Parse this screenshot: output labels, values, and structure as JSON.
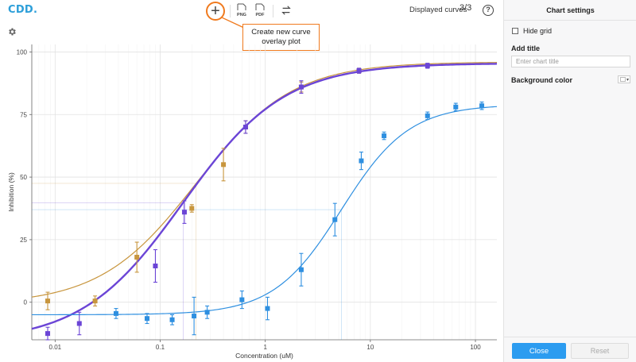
{
  "app": {
    "logo": "CDD."
  },
  "toolbar": {
    "add_curve_icon": "plus-icon",
    "png_label": "PNG",
    "pdf_label": "PDF",
    "swap_icon": "swap-arrows-icon",
    "displayed_curves_label": "Displayed curves",
    "displayed_curves_count": "3/3",
    "help_label": "?"
  },
  "callout": {
    "line1": "Create new curve",
    "line2": "overlay plot"
  },
  "panel": {
    "title": "Chart settings",
    "hide_grid_label": "Hide grid",
    "hide_grid_checked": false,
    "add_title_label": "Add title",
    "title_placeholder": "Enter chart title",
    "title_value": "",
    "background_color_label": "Background color",
    "background_color": "#ffffff",
    "close_label": "Close",
    "reset_label": "Reset"
  },
  "colors": {
    "accent": "#2c9cf0",
    "callout": "#f07a1e"
  },
  "chart_data": {
    "type": "scatter",
    "xlabel": "Concentration (uM)",
    "ylabel": "Inhibition (%)",
    "x_scale": "log",
    "xlim": [
      0.006,
      160
    ],
    "ylim": [
      -15,
      103
    ],
    "x_ticks": [
      0.01,
      0.1,
      1,
      10,
      100
    ],
    "x_tick_labels": [
      "0.01",
      "0.1",
      "1",
      "10",
      "100"
    ],
    "y_ticks": [
      0,
      25,
      50,
      75,
      100
    ],
    "y_tick_labels": [
      "0",
      "25",
      "50",
      "75",
      "100"
    ],
    "grid": true,
    "series": [
      {
        "color": "#c8963e",
        "points": [
          {
            "x": 0.0085,
            "y": 0.5,
            "err": 3.5
          },
          {
            "x": 0.024,
            "y": 0.5,
            "err": 2.0
          },
          {
            "x": 0.06,
            "y": 18.0,
            "err": 6.0
          },
          {
            "x": 0.2,
            "y": 37.5,
            "err": 1.5
          },
          {
            "x": 0.4,
            "y": 55.0,
            "err": 6.5
          },
          {
            "x": 0.65,
            "y": 70.0,
            "err": 2.5
          },
          {
            "x": 2.2,
            "y": 86.0,
            "err": 2.0
          },
          {
            "x": 7.8,
            "y": 92.5,
            "err": 1.0
          }
        ],
        "curve": {
          "bottom": -1,
          "top": 96,
          "ic50": 0.22,
          "hill": 0.95
        }
      },
      {
        "color": "#6b45d6",
        "points": [
          {
            "x": 0.0085,
            "y": -12.5,
            "err": 2.5
          },
          {
            "x": 0.017,
            "y": -8.5,
            "err": 4.5
          },
          {
            "x": 0.09,
            "y": 14.5,
            "err": 6.5
          },
          {
            "x": 0.17,
            "y": 36.0,
            "err": 4.5
          },
          {
            "x": 0.65,
            "y": 70.0,
            "err": 2.5
          },
          {
            "x": 2.2,
            "y": 86.0,
            "err": 2.5
          },
          {
            "x": 7.8,
            "y": 92.5,
            "err": 1.0
          },
          {
            "x": 35,
            "y": 94.5,
            "err": 1.0
          }
        ],
        "curve": {
          "bottom": -16,
          "top": 95.5,
          "ic50": 0.165,
          "hill": 0.9
        }
      },
      {
        "color": "#2e8fe0",
        "points": [
          {
            "x": 0.038,
            "y": -4.5,
            "err": 2.0
          },
          {
            "x": 0.075,
            "y": -6.5,
            "err": 2.0
          },
          {
            "x": 0.13,
            "y": -7.0,
            "err": 2.0
          },
          {
            "x": 0.21,
            "y": -5.5,
            "err": 7.5
          },
          {
            "x": 0.28,
            "y": -4.0,
            "err": 2.5
          },
          {
            "x": 0.6,
            "y": 1.0,
            "err": 3.5
          },
          {
            "x": 1.05,
            "y": -2.5,
            "err": 4.5
          },
          {
            "x": 2.2,
            "y": 13.0,
            "err": 6.5
          },
          {
            "x": 4.6,
            "y": 33.0,
            "err": 6.5
          },
          {
            "x": 8.2,
            "y": 56.5,
            "err": 3.5
          },
          {
            "x": 13.5,
            "y": 66.5,
            "err": 1.5
          },
          {
            "x": 35,
            "y": 74.5,
            "err": 1.5
          },
          {
            "x": 65,
            "y": 78.0,
            "err": 1.5
          },
          {
            "x": 115,
            "y": 78.5,
            "err": 1.5
          }
        ],
        "curve": {
          "bottom": -5,
          "top": 79,
          "ic50": 5.3,
          "hill": 1.35
        }
      }
    ]
  }
}
